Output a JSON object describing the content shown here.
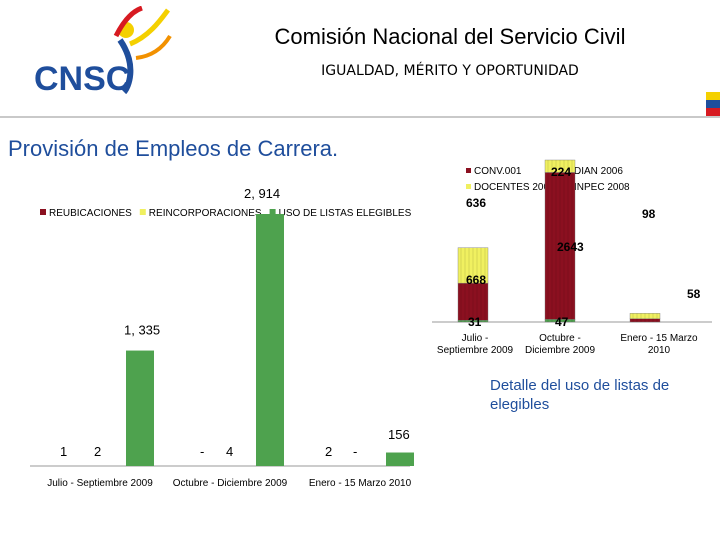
{
  "header": {
    "org_name": "Comisión Nacional del Servicio Civil",
    "motto": "IGUALDAD, MÉRITO Y OPORTUNIDAD",
    "logo_text": "CNSC",
    "colors": {
      "blue": "#1f4e9c",
      "yellow": "#f4d000",
      "red": "#d71a21",
      "orange": "#f29100"
    }
  },
  "page_title": "Provisión de Empleos de Carrera.",
  "note": "Detalle del uso de listas de elegibles",
  "chart_data": [
    {
      "type": "bar",
      "categories": [
        "Julio - Septiembre 2009",
        "Octubre - Diciembre 2009",
        "Enero - 15 Marzo 2010"
      ],
      "legend_position": "top",
      "colors": [
        "#8b1020",
        "#f0f060",
        "#4ea24e"
      ],
      "series": [
        {
          "name": "REUBICACIONES",
          "values": [
            1,
            null,
            2
          ],
          "labels": [
            "1",
            "-",
            "2"
          ]
        },
        {
          "name": "REINCORPORACIONES",
          "values": [
            2,
            4,
            null
          ],
          "labels": [
            "2",
            "4",
            "-"
          ]
        },
        {
          "name": "USO DE LISTAS ELEGIBLES",
          "values": [
            1335,
            2914,
            156
          ],
          "labels": [
            "1, 335",
            "2, 914",
            "156"
          ]
        }
      ]
    },
    {
      "type": "bar",
      "categories": [
        "Julio - Septiembre 2009",
        "Octubre - Diciembre 2009",
        "Enero - 15 Marzo 2010"
      ],
      "legend_position": "top",
      "colors": [
        "#8b1020",
        "#f0f060",
        "#4ea24e"
      ],
      "series": [
        {
          "name": "CONV.001",
          "values": [
            668,
            2643,
            58
          ],
          "labels": [
            "668",
            "2643",
            "58"
          ]
        },
        {
          "name": "DOCENTES 2006",
          "values": [
            636,
            224,
            98
          ],
          "labels": [
            "636",
            "224",
            "98"
          ]
        },
        {
          "name": "DIAN 2006",
          "values": [
            31,
            47,
            null
          ],
          "labels": [
            "31",
            "47",
            ""
          ]
        },
        {
          "name": "INPEC 2008",
          "values": [
            null,
            null,
            null
          ],
          "labels": [
            "",
            "",
            ""
          ]
        }
      ]
    }
  ]
}
